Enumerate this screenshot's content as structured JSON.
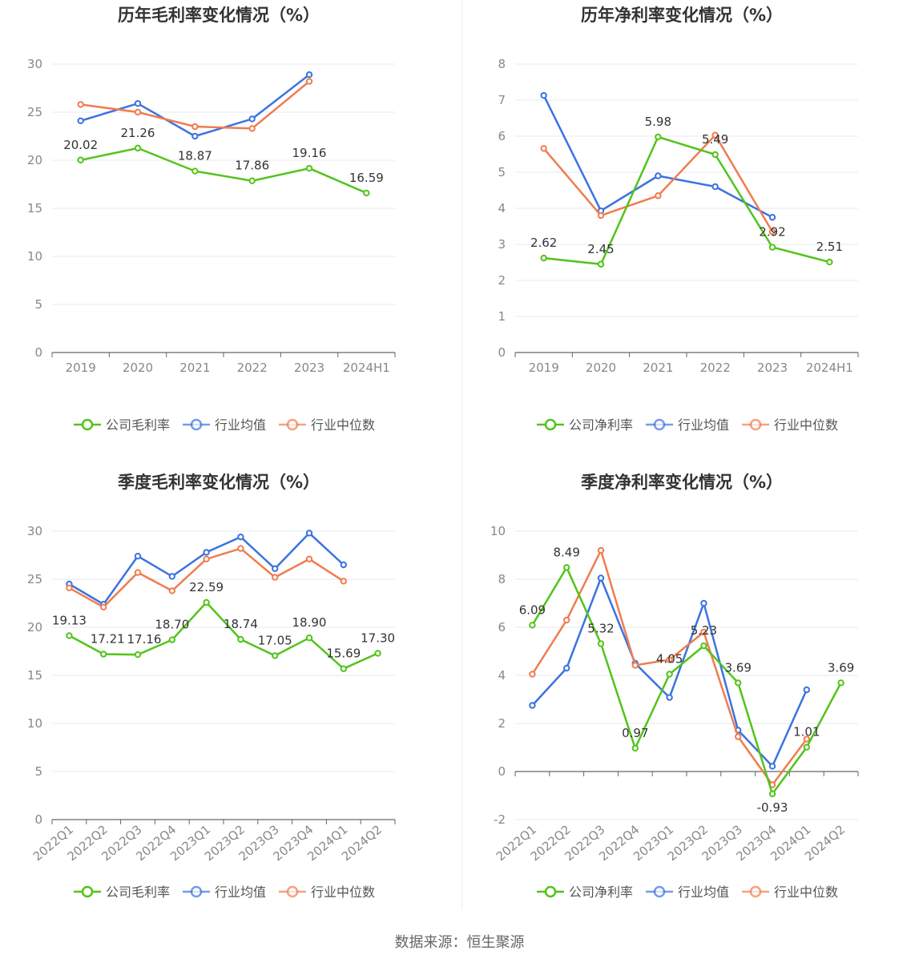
{
  "source": "数据来源：恒生聚源",
  "colors": {
    "company": "#52c41a",
    "industry_avg": "#3b73e0",
    "industry_median": "#f07c4f",
    "grid": "#e6e8f0",
    "axis": "#888888",
    "label": "#333333",
    "title": "#333333"
  },
  "legend_labels": {
    "industry_avg": "行业均值",
    "industry_median": "行业中位数"
  },
  "chart_data": [
    {
      "type": "line",
      "title": "历年毛利率变化情况（%）",
      "categories": [
        "2019",
        "2020",
        "2021",
        "2022",
        "2023",
        "2024H1"
      ],
      "ylim": [
        0,
        30
      ],
      "yticks": [
        0,
        5,
        10,
        15,
        20,
        25,
        30
      ],
      "xlabel_rotate": false,
      "series": [
        {
          "name": "公司毛利率",
          "key": "company",
          "values": [
            20.02,
            21.26,
            18.87,
            17.86,
            19.16,
            16.59
          ],
          "labels": [
            "20.02",
            "21.26",
            "18.87",
            "17.86",
            "19.16",
            "16.59"
          ]
        },
        {
          "name": "行业均值",
          "key": "industry_avg",
          "values": [
            24.1,
            25.9,
            22.5,
            24.3,
            28.9,
            null
          ]
        },
        {
          "name": "行业中位数",
          "key": "industry_median",
          "values": [
            25.8,
            25.0,
            23.5,
            23.3,
            28.2,
            null
          ]
        }
      ]
    },
    {
      "type": "line",
      "title": "历年净利率变化情况（%）",
      "categories": [
        "2019",
        "2020",
        "2021",
        "2022",
        "2023",
        "2024H1"
      ],
      "ylim": [
        0,
        8
      ],
      "yticks": [
        0,
        1,
        2,
        3,
        4,
        5,
        6,
        7,
        8
      ],
      "xlabel_rotate": false,
      "series": [
        {
          "name": "公司净利率",
          "key": "company",
          "values": [
            2.62,
            2.45,
            5.98,
            5.49,
            2.92,
            2.51
          ],
          "labels": [
            "2.62",
            "2.45",
            "5.98",
            "5.49",
            "2.92",
            "2.51"
          ]
        },
        {
          "name": "行业均值",
          "key": "industry_avg",
          "values": [
            7.13,
            3.93,
            4.9,
            4.6,
            3.75,
            null
          ]
        },
        {
          "name": "行业中位数",
          "key": "industry_median",
          "values": [
            5.66,
            3.8,
            4.35,
            6.03,
            3.35,
            null
          ]
        }
      ]
    },
    {
      "type": "line",
      "title": "季度毛利率变化情况（%）",
      "categories": [
        "2022Q1",
        "2022Q2",
        "2022Q3",
        "2022Q4",
        "2023Q1",
        "2023Q2",
        "2023Q3",
        "2023Q4",
        "2024Q1",
        "2024Q2"
      ],
      "ylim": [
        0,
        30
      ],
      "yticks": [
        0,
        5,
        10,
        15,
        20,
        25,
        30
      ],
      "xlabel_rotate": true,
      "series": [
        {
          "name": "公司毛利率",
          "key": "company",
          "values": [
            19.13,
            17.21,
            17.16,
            18.7,
            22.59,
            18.74,
            17.05,
            18.9,
            15.69,
            17.3
          ],
          "labels": [
            "19.13",
            "17.21",
            "17.16",
            "18.70",
            "22.59",
            "18.74",
            "17.05",
            "18.90",
            "15.69",
            "17.30"
          ]
        },
        {
          "name": "行业均值",
          "key": "industry_avg",
          "values": [
            24.5,
            22.4,
            27.4,
            25.3,
            27.8,
            29.4,
            26.1,
            29.8,
            26.5,
            null
          ]
        },
        {
          "name": "行业中位数",
          "key": "industry_median",
          "values": [
            24.1,
            22.1,
            25.7,
            23.8,
            27.1,
            28.2,
            25.2,
            27.1,
            24.8,
            null
          ]
        }
      ]
    },
    {
      "type": "line",
      "title": "季度净利率变化情况（%）",
      "categories": [
        "2022Q1",
        "2022Q2",
        "2022Q3",
        "2022Q4",
        "2023Q1",
        "2023Q2",
        "2023Q3",
        "2023Q4",
        "2024Q1",
        "2024Q2"
      ],
      "ylim": [
        -2,
        10
      ],
      "yticks": [
        -2,
        0,
        2,
        4,
        6,
        8,
        10
      ],
      "xlabel_rotate": true,
      "series": [
        {
          "name": "公司净利率",
          "key": "company",
          "values": [
            6.09,
            8.49,
            5.32,
            0.97,
            4.05,
            5.23,
            3.69,
            -0.93,
            1.01,
            3.69
          ],
          "labels": [
            "6.09",
            "8.49",
            "5.32",
            "0.97",
            "4.05",
            "5.23",
            "3.69",
            "-0.93",
            "1.01",
            "3.69"
          ]
        },
        {
          "name": "行业均值",
          "key": "industry_avg",
          "values": [
            2.75,
            4.3,
            8.05,
            4.5,
            3.08,
            7.0,
            1.72,
            0.22,
            3.4,
            null
          ]
        },
        {
          "name": "行业中位数",
          "key": "industry_median",
          "values": [
            4.05,
            6.3,
            9.2,
            4.42,
            4.65,
            5.8,
            1.45,
            -0.55,
            1.35,
            null
          ]
        }
      ]
    }
  ]
}
